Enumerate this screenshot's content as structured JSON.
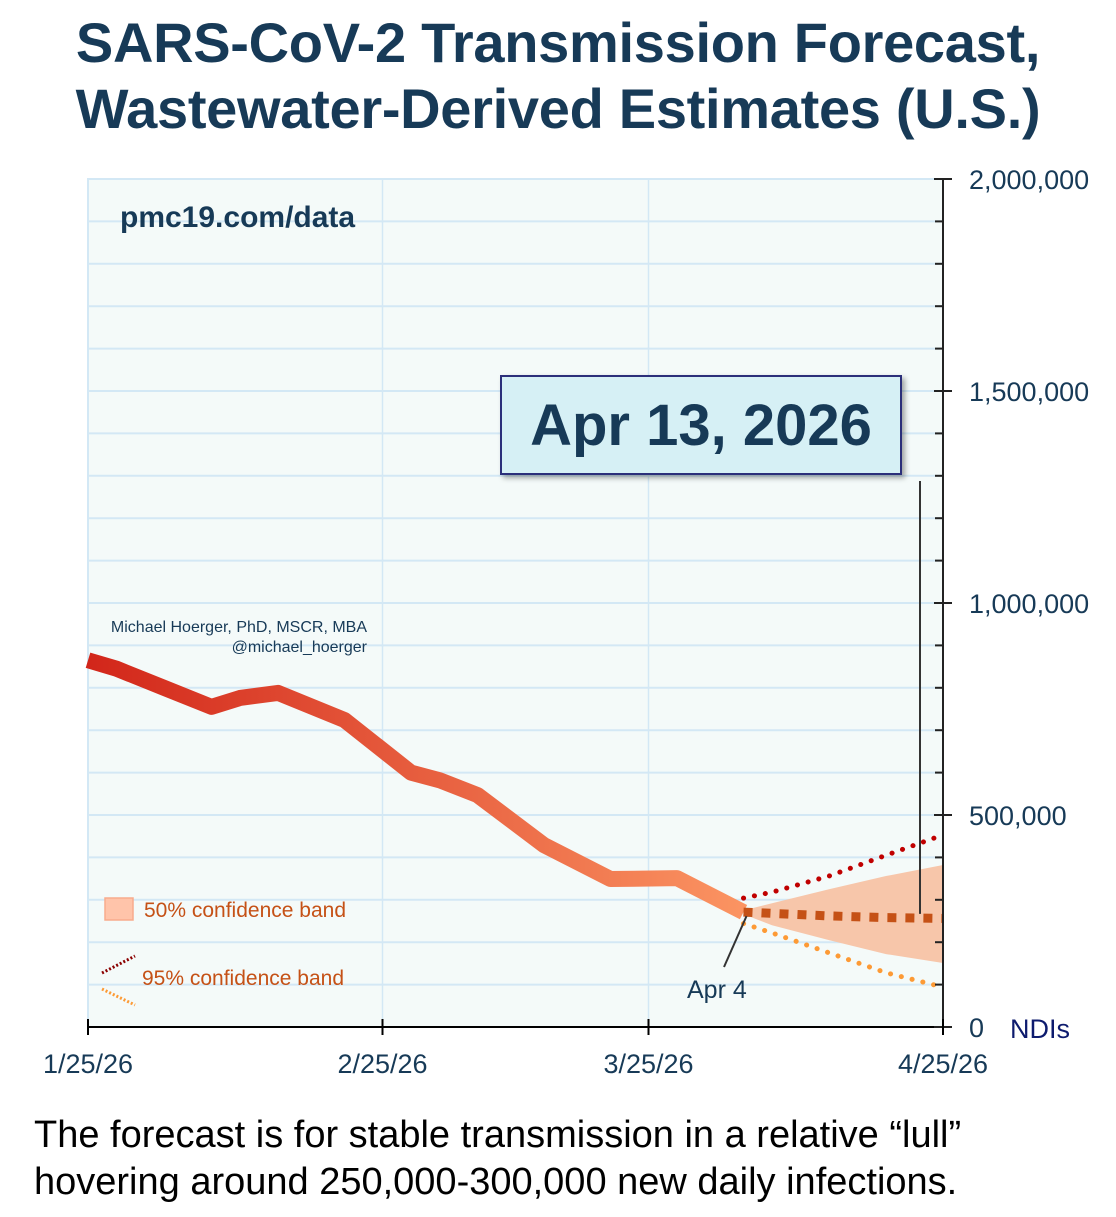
{
  "header": {
    "title_line1": "SARS-CoV-2 Transmission Forecast,",
    "title_line2": "Wastewater-Derived Estimates (U.S.)"
  },
  "watermark": "pmc19.com/data",
  "author": {
    "name": "Michael Hoerger, PhD, MSCR, MBA",
    "handle": "@michael_hoerger"
  },
  "annotation": {
    "forecast_date": "Apr 13, 2026",
    "start_label": "Apr 4"
  },
  "caption": {
    "line1": "The forecast is for stable transmission in a relative “lull”",
    "line2": "hovering around 250,000-300,000 new daily infections."
  },
  "colors": {
    "title": "#173a57",
    "plot_bg": "#f4faf9",
    "grid": "#d3e8f5",
    "observed_start": "#d2261a",
    "observed_end": "#fb9462",
    "band50": "#f7c6aa",
    "median": "#c55116",
    "ci95_upper": "#c00000",
    "ci95_lower": "#fd9a35",
    "legend_text": "#c55116",
    "units": "#0d1b6e"
  },
  "chart_data": {
    "type": "line",
    "title": "SARS-CoV-2 Transmission Forecast, Wastewater-Derived Estimates (U.S.)",
    "xlabel": "",
    "ylabel": "NDIs",
    "y_axis_position": "right",
    "ylim": [
      0,
      2000000
    ],
    "y_ticks": [
      0,
      500000,
      1000000,
      1500000,
      2000000
    ],
    "y_tick_labels": [
      "0",
      "500,000",
      "1,000,000",
      "1,500,000",
      "2,000,000"
    ],
    "y_minor_step": 100000,
    "x_range_days": [
      0,
      90
    ],
    "x_ticks_days": [
      0,
      31,
      59,
      90
    ],
    "x_tick_labels": [
      "1/25/26",
      "2/25/26",
      "3/25/26",
      "4/25/26"
    ],
    "grid": true,
    "legend": {
      "placement": "bottom-left",
      "entries": [
        "50% confidence band",
        "95% confidence band"
      ]
    },
    "series": [
      {
        "name": "Observed",
        "x_days": [
          0,
          3,
          8,
          13,
          16,
          20,
          27,
          34,
          37,
          41,
          48,
          55,
          62,
          69
        ],
        "values": [
          865000,
          845000,
          800000,
          755000,
          776000,
          788000,
          724000,
          600000,
          582000,
          547000,
          429000,
          349000,
          351000,
          271000
        ]
      },
      {
        "name": "Forecast median",
        "x_days": [
          69,
          72,
          78,
          84,
          90
        ],
        "values": [
          271000,
          268000,
          262000,
          258000,
          256000
        ]
      },
      {
        "name": "50% band upper",
        "x_days": [
          69,
          72,
          78,
          84,
          90
        ],
        "values": [
          275000,
          292000,
          325000,
          356000,
          382000
        ]
      },
      {
        "name": "50% band lower",
        "x_days": [
          69,
          72,
          78,
          84,
          90
        ],
        "values": [
          266000,
          240000,
          205000,
          172000,
          151000
        ]
      },
      {
        "name": "95% band upper",
        "x_days": [
          69,
          72,
          78,
          84,
          90
        ],
        "values": [
          304000,
          318000,
          356000,
          405000,
          453000
        ]
      },
      {
        "name": "95% band lower",
        "x_days": [
          69,
          72,
          78,
          84,
          90
        ],
        "values": [
          244000,
          222000,
          175000,
          128000,
          94000
        ]
      }
    ],
    "annotations": [
      {
        "text": "Apr 13, 2026",
        "x_day": 78,
        "y": 262000
      },
      {
        "text": "Apr 4",
        "x_day": 69,
        "y": 271000
      }
    ]
  }
}
